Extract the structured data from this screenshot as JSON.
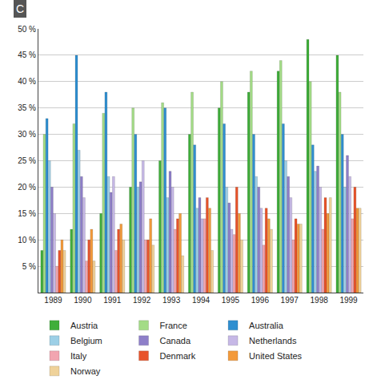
{
  "chart_data": {
    "type": "bar",
    "categories": [
      "1989",
      "1990",
      "1991",
      "1992",
      "1993",
      "1994",
      "1995",
      "1996",
      "1997",
      "1998",
      "1999"
    ],
    "series": [
      {
        "name": "Austria",
        "color": "#3fae3a",
        "values": [
          8,
          12,
          15,
          20,
          25,
          30,
          35,
          38,
          42,
          48,
          45
        ]
      },
      {
        "name": "France",
        "color": "#a3dc86",
        "values": [
          30,
          32,
          34,
          35,
          36,
          38,
          40,
          42,
          44,
          40,
          38
        ]
      },
      {
        "name": "Australia",
        "color": "#2f8fd0",
        "values": [
          33,
          45,
          38,
          30,
          35,
          28,
          32,
          30,
          32,
          28,
          30
        ]
      },
      {
        "name": "Belgium",
        "color": "#9ccfe6",
        "values": [
          25,
          27,
          22,
          20,
          18,
          16,
          20,
          22,
          25,
          23,
          20
        ]
      },
      {
        "name": "Canada",
        "color": "#8e7fc9",
        "values": [
          20,
          22,
          19,
          21,
          23,
          18,
          17,
          20,
          22,
          24,
          26
        ]
      },
      {
        "name": "Netherlands",
        "color": "#c6b8e6",
        "values": [
          15,
          18,
          22,
          25,
          20,
          14,
          12,
          16,
          18,
          20,
          22
        ]
      },
      {
        "name": "Italy",
        "color": "#f2a5b0",
        "values": [
          5,
          6,
          8,
          10,
          12,
          14,
          11,
          9,
          10,
          12,
          14
        ]
      },
      {
        "name": "Denmark",
        "color": "#e8532a",
        "values": [
          8,
          10,
          12,
          10,
          14,
          18,
          20,
          16,
          14,
          18,
          20
        ]
      },
      {
        "name": "United States",
        "color": "#f39a3b",
        "values": [
          10,
          12,
          13,
          14,
          15,
          16,
          15,
          14,
          13,
          15,
          16
        ]
      },
      {
        "name": "Norway",
        "color": "#efd29a",
        "values": [
          8,
          6,
          10,
          9,
          7,
          8,
          10,
          12,
          13,
          18,
          16
        ]
      }
    ],
    "ylim": [
      0,
      50
    ],
    "yticks": [
      {
        "value": 5,
        "label": "5 %"
      },
      {
        "value": 10,
        "label": "10 %"
      },
      {
        "value": 15,
        "label": "15 %"
      },
      {
        "value": 20,
        "label": "20 %"
      },
      {
        "value": 25,
        "label": "25 %"
      },
      {
        "value": 30,
        "label": "30 %"
      },
      {
        "value": 35,
        "label": "35 %"
      },
      {
        "value": 40,
        "label": "40 %"
      },
      {
        "value": 45,
        "label": "45 %"
      },
      {
        "value": 50,
        "label": "50 %"
      }
    ],
    "grid": true,
    "legend": "bottom",
    "annotations": [
      "C"
    ]
  }
}
